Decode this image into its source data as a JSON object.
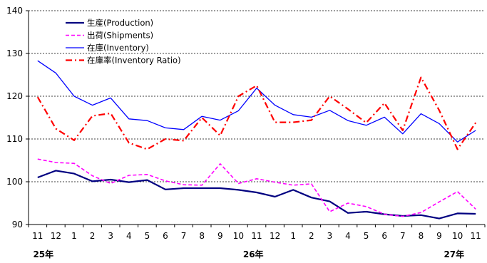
{
  "chart_data": {
    "type": "line",
    "title": "",
    "xlabel": "",
    "ylabel": "",
    "ylim": [
      90,
      140
    ],
    "yticks": [
      90,
      100,
      110,
      120,
      130,
      140
    ],
    "grid": "horizontal dashed",
    "legend_position": "top-left",
    "categories": [
      "11",
      "12",
      "1",
      "2",
      "3",
      "4",
      "5",
      "6",
      "7",
      "8",
      "9",
      "10",
      "11",
      "12",
      "1",
      "2",
      "3",
      "4",
      "5",
      "6",
      "7",
      "8",
      "9",
      "10",
      "11"
    ],
    "year_labels": [
      {
        "label": "25年",
        "index": 0
      },
      {
        "label": "26年",
        "index": 11.5
      },
      {
        "label": "27年",
        "index": 22.5
      }
    ],
    "series": [
      {
        "name": "生産(Production)",
        "color": "#000080",
        "dash": "solid",
        "width": 2.2,
        "values": [
          101.0,
          102.6,
          101.9,
          100.1,
          100.5,
          99.9,
          100.4,
          98.2,
          98.5,
          98.5,
          98.5,
          98.1,
          97.5,
          96.5,
          98.1,
          96.3,
          95.4,
          92.7,
          93.0,
          92.4,
          92.0,
          92.2,
          91.4,
          92.6,
          92.5
        ]
      },
      {
        "name": "出荷(Shipments)",
        "color": "#ff00ff",
        "dash": "dashed",
        "width": 1.6,
        "values": [
          105.3,
          104.5,
          104.3,
          101.4,
          99.6,
          101.5,
          101.7,
          100.2,
          99.3,
          99.2,
          104.2,
          99.6,
          100.7,
          99.9,
          99.2,
          99.5,
          93.0,
          95.0,
          94.2,
          92.4,
          91.9,
          92.8,
          95.3,
          97.7,
          93.6
        ]
      },
      {
        "name": "在庫(Inventory)",
        "color": "#0000ff",
        "dash": "solid",
        "width": 1.3,
        "values": [
          128.3,
          125.4,
          120.0,
          117.9,
          119.6,
          114.7,
          114.3,
          112.6,
          112.2,
          115.3,
          114.4,
          116.6,
          121.9,
          117.9,
          115.7,
          115.1,
          116.7,
          114.3,
          113.2,
          115.1,
          111.2,
          115.9,
          113.6,
          109.3,
          112.0
        ]
      },
      {
        "name": "在庫率(Inventory Ratio)",
        "color": "#ff0000",
        "dash": "dashdot",
        "width": 2.2,
        "values": [
          119.8,
          112.4,
          109.7,
          115.4,
          116.0,
          109.1,
          107.6,
          110.0,
          109.6,
          115.0,
          110.8,
          120.0,
          122.5,
          113.9,
          113.9,
          114.4,
          120.0,
          117.0,
          113.8,
          118.4,
          112.0,
          124.4,
          116.7,
          107.6,
          113.8
        ]
      }
    ]
  }
}
